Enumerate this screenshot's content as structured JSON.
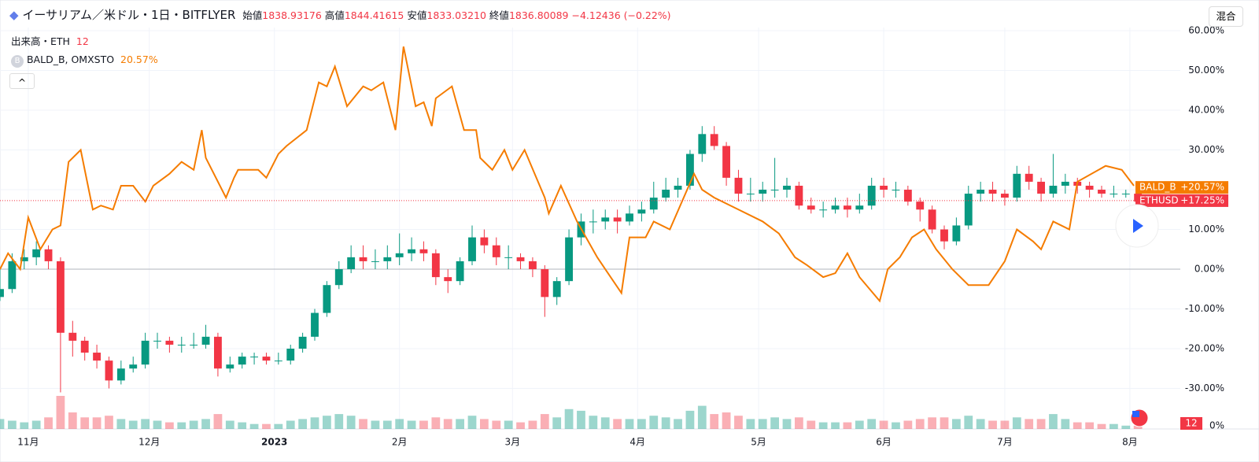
{
  "header": {
    "title": "イーサリアム／米ドル・1日・BITFLYER",
    "open_label": "始値",
    "open": "1838.93176",
    "high_label": "高値",
    "high": "1844.41615",
    "low_label": "安値",
    "low": "1833.03210",
    "close_label": "終値",
    "close": "1836.80089",
    "change": "−4.12436 (−0.22%)",
    "mode_button": "混合"
  },
  "legend": {
    "volume_label": "出来高・ETH",
    "volume_value": "12",
    "compare_icon": "B",
    "compare_label": "BALD_B, OMXSTO",
    "compare_value": "20.57%",
    "collapse": "^"
  },
  "chart_data": {
    "type": "candlestick",
    "up_color": "#089981",
    "down_color": "#f23645",
    "xlim": [
      0,
      292.5
    ],
    "xticks": [
      {
        "value": 7,
        "label": "11月"
      },
      {
        "value": 37,
        "label": "12月"
      },
      {
        "value": 68,
        "label": "2023"
      },
      {
        "value": 99,
        "label": "2月"
      },
      {
        "value": 127,
        "label": "3月"
      },
      {
        "value": 158,
        "label": "4月"
      },
      {
        "value": 188,
        "label": "5月"
      },
      {
        "value": 219,
        "label": "6月"
      },
      {
        "value": 249,
        "label": "7月"
      },
      {
        "value": 280,
        "label": "8月"
      }
    ],
    "ylim": [
      -40.2,
      60.8
    ],
    "yticks": [
      {
        "value": -30,
        "label": "-30.00%"
      },
      {
        "value": -20,
        "label": "-20.00%"
      },
      {
        "value": -10,
        "label": "-10.00%"
      },
      {
        "value": 0,
        "label": "0.00%"
      },
      {
        "value": 10,
        "label": "10.00%"
      },
      {
        "value": 20,
        "label": "20.00%"
      },
      {
        "value": 30,
        "label": "30.00%"
      },
      {
        "value": 40,
        "label": "40.00%"
      },
      {
        "value": 50,
        "label": "50.00%"
      },
      {
        "value": 60,
        "label": "60.00%"
      }
    ],
    "grid": true,
    "volume_scale_label": "0%",
    "volume_badge": "12",
    "candles": [
      [
        0,
        -7,
        0,
        -8,
        -5,
        30
      ],
      [
        3,
        -5,
        4,
        -6,
        2,
        25
      ],
      [
        6,
        2,
        5,
        0,
        3,
        20
      ],
      [
        9,
        3,
        7,
        1,
        5,
        25
      ],
      [
        12,
        5,
        6,
        0,
        2,
        35
      ],
      [
        15,
        2,
        3,
        -31,
        -16,
        100
      ],
      [
        18,
        -16,
        -13,
        -22,
        -18,
        50
      ],
      [
        21,
        -18,
        -17,
        -23,
        -21,
        35
      ],
      [
        24,
        -21,
        -19,
        -25,
        -23,
        35
      ],
      [
        27,
        -23,
        -22,
        -30,
        -28,
        40
      ],
      [
        30,
        -28,
        -23,
        -29,
        -25,
        30
      ],
      [
        33,
        -25,
        -22,
        -26,
        -24,
        25
      ],
      [
        36,
        -24,
        -16,
        -25,
        -18,
        30
      ],
      [
        39,
        -18,
        -16,
        -20,
        -18,
        25
      ],
      [
        42,
        -18,
        -17,
        -21,
        -19,
        20
      ],
      [
        45,
        -19,
        -17,
        -21,
        -19,
        20
      ],
      [
        48,
        -19,
        -16,
        -20,
        -19,
        25
      ],
      [
        51,
        -19,
        -14,
        -20,
        -17,
        30
      ],
      [
        54,
        -17,
        -16,
        -27,
        -25,
        45
      ],
      [
        57,
        -25,
        -22,
        -26,
        -24,
        25
      ],
      [
        60,
        -24,
        -21,
        -25,
        -22,
        20
      ],
      [
        63,
        -22,
        -21,
        -24,
        -22,
        15
      ],
      [
        66,
        -22,
        -21,
        -24,
        -23,
        15
      ],
      [
        69,
        -23,
        -21,
        -24,
        -23,
        15
      ],
      [
        72,
        -23,
        -19,
        -24,
        -20,
        25
      ],
      [
        75,
        -20,
        -16,
        -21,
        -17,
        30
      ],
      [
        78,
        -17,
        -10,
        -18,
        -11,
        35
      ],
      [
        81,
        -11,
        -3,
        -12,
        -4,
        40
      ],
      [
        84,
        -4,
        2,
        -5,
        0,
        45
      ],
      [
        87,
        0,
        6,
        -1,
        3,
        40
      ],
      [
        90,
        3,
        6,
        0,
        2,
        30
      ],
      [
        93,
        2,
        5,
        0,
        2,
        25
      ],
      [
        96,
        2,
        6,
        0,
        3,
        25
      ],
      [
        99,
        3,
        9,
        1,
        4,
        30
      ],
      [
        102,
        4,
        8,
        2,
        5,
        25
      ],
      [
        105,
        5,
        7,
        2,
        4,
        25
      ],
      [
        108,
        4,
        5,
        -4,
        -2,
        35
      ],
      [
        111,
        -2,
        0,
        -6,
        -3,
        30
      ],
      [
        114,
        -3,
        3,
        -4,
        2,
        30
      ],
      [
        117,
        2,
        11,
        1,
        8,
        40
      ],
      [
        120,
        8,
        10,
        4,
        6,
        30
      ],
      [
        123,
        6,
        8,
        1,
        3,
        25
      ],
      [
        126,
        3,
        6,
        0,
        3,
        25
      ],
      [
        129,
        3,
        4,
        0,
        2,
        20
      ],
      [
        132,
        2,
        3,
        -2,
        0,
        25
      ],
      [
        135,
        0,
        1,
        -12,
        -7,
        45
      ],
      [
        138,
        -7,
        -2,
        -9,
        -3,
        35
      ],
      [
        141,
        -3,
        10,
        -4,
        8,
        60
      ],
      [
        144,
        8,
        14,
        6,
        12,
        55
      ],
      [
        147,
        12,
        15,
        9,
        12,
        40
      ],
      [
        150,
        12,
        15,
        10,
        13,
        35
      ],
      [
        153,
        13,
        15,
        9,
        12,
        30
      ],
      [
        156,
        12,
        16,
        11,
        14,
        30
      ],
      [
        159,
        14,
        17,
        12,
        15,
        30
      ],
      [
        162,
        15,
        22,
        14,
        18,
        40
      ],
      [
        165,
        18,
        23,
        17,
        20,
        35
      ],
      [
        168,
        20,
        23,
        18,
        21,
        30
      ],
      [
        171,
        21,
        30,
        20,
        29,
        55
      ],
      [
        174,
        29,
        36,
        27,
        34,
        70
      ],
      [
        177,
        34,
        36,
        30,
        31,
        45
      ],
      [
        180,
        31,
        32,
        21,
        23,
        50
      ],
      [
        183,
        23,
        25,
        17,
        19,
        40
      ],
      [
        186,
        19,
        23,
        17,
        19,
        30
      ],
      [
        189,
        19,
        22,
        17,
        20,
        30
      ],
      [
        192,
        20,
        28,
        18,
        20,
        35
      ],
      [
        195,
        20,
        23,
        18,
        21,
        30
      ],
      [
        198,
        21,
        22,
        15,
        16,
        35
      ],
      [
        201,
        16,
        18,
        14,
        15,
        25
      ],
      [
        204,
        15,
        17,
        13,
        15,
        20
      ],
      [
        207,
        15,
        18,
        14,
        16,
        20
      ],
      [
        210,
        16,
        18,
        13,
        15,
        20
      ],
      [
        213,
        15,
        19,
        14,
        16,
        25
      ],
      [
        216,
        16,
        23,
        15,
        21,
        30
      ],
      [
        219,
        21,
        23,
        18,
        20,
        25
      ],
      [
        222,
        20,
        22,
        18,
        20,
        20
      ],
      [
        225,
        20,
        21,
        16,
        17,
        25
      ],
      [
        228,
        17,
        18,
        12,
        15,
        30
      ],
      [
        231,
        15,
        16,
        9,
        10,
        35
      ],
      [
        234,
        10,
        11,
        5,
        7,
        35
      ],
      [
        237,
        7,
        13,
        6,
        11,
        30
      ],
      [
        240,
        11,
        21,
        10,
        19,
        40
      ],
      [
        243,
        19,
        22,
        17,
        20,
        30
      ],
      [
        246,
        20,
        22,
        17,
        19,
        25
      ],
      [
        249,
        19,
        20,
        16,
        18,
        25
      ],
      [
        252,
        18,
        26,
        17,
        24,
        35
      ],
      [
        255,
        24,
        26,
        20,
        22,
        30
      ],
      [
        258,
        22,
        23,
        17,
        19,
        30
      ],
      [
        261,
        19,
        29,
        18,
        21,
        45
      ],
      [
        264,
        21,
        24,
        19,
        22,
        30
      ],
      [
        267,
        22,
        23,
        19,
        21,
        20
      ],
      [
        270,
        21,
        22,
        18,
        20,
        20
      ],
      [
        273,
        20,
        21,
        18,
        19,
        15
      ],
      [
        276,
        19,
        21,
        18,
        19,
        15
      ],
      [
        279,
        19,
        20,
        18,
        19,
        10
      ],
      [
        282,
        19,
        20,
        16,
        17,
        10
      ]
    ],
    "compare": {
      "name": "BALD_B",
      "color": "#f57c00",
      "x": [
        0,
        2,
        5,
        7,
        10,
        13,
        15,
        17,
        20,
        23,
        25,
        28,
        30,
        33,
        36,
        38,
        42,
        45,
        48,
        50,
        51,
        56,
        58,
        59,
        64,
        66,
        69,
        71,
        76,
        79,
        81,
        83,
        86,
        90,
        92,
        95,
        98,
        100,
        103,
        105,
        107,
        108,
        112,
        115,
        118,
        119,
        122,
        125,
        127,
        130,
        135,
        136,
        139,
        143,
        148,
        150,
        154,
        156,
        160,
        162,
        166,
        172,
        174,
        177,
        183,
        189,
        193,
        197,
        200,
        204,
        207,
        210,
        213,
        218,
        220,
        223,
        226,
        229,
        232,
        236,
        240,
        245,
        249,
        252,
        256,
        258,
        261,
        265,
        267,
        274,
        278,
        281
      ],
      "values": [
        0,
        4,
        0,
        13,
        5,
        10,
        11,
        27,
        30,
        15,
        16,
        15,
        21,
        21,
        17,
        21,
        24,
        27,
        25,
        35,
        28,
        18,
        23,
        25,
        25,
        23,
        29,
        31,
        35,
        47,
        46,
        51,
        41,
        46,
        45,
        47,
        35,
        56,
        41,
        42,
        36,
        43,
        46,
        35,
        35,
        28,
        25,
        30,
        25,
        30,
        18,
        14,
        21,
        12,
        3,
        0,
        -6,
        8,
        8,
        12,
        10,
        24,
        20,
        18,
        15,
        12,
        9,
        3,
        1,
        -2,
        -1,
        4,
        -2,
        -8,
        0,
        3,
        8,
        10,
        5,
        0,
        -4,
        -4,
        2,
        10,
        7,
        5,
        12,
        10,
        22,
        26,
        25,
        21
      ]
    },
    "badges": [
      {
        "name": "BALD_B",
        "label": "+20.57%",
        "value": 20.57,
        "color": "#f57c00"
      },
      {
        "name": "ETHUSD",
        "label": "+17.25%",
        "value": 17.25,
        "color": "#f23645"
      }
    ]
  }
}
